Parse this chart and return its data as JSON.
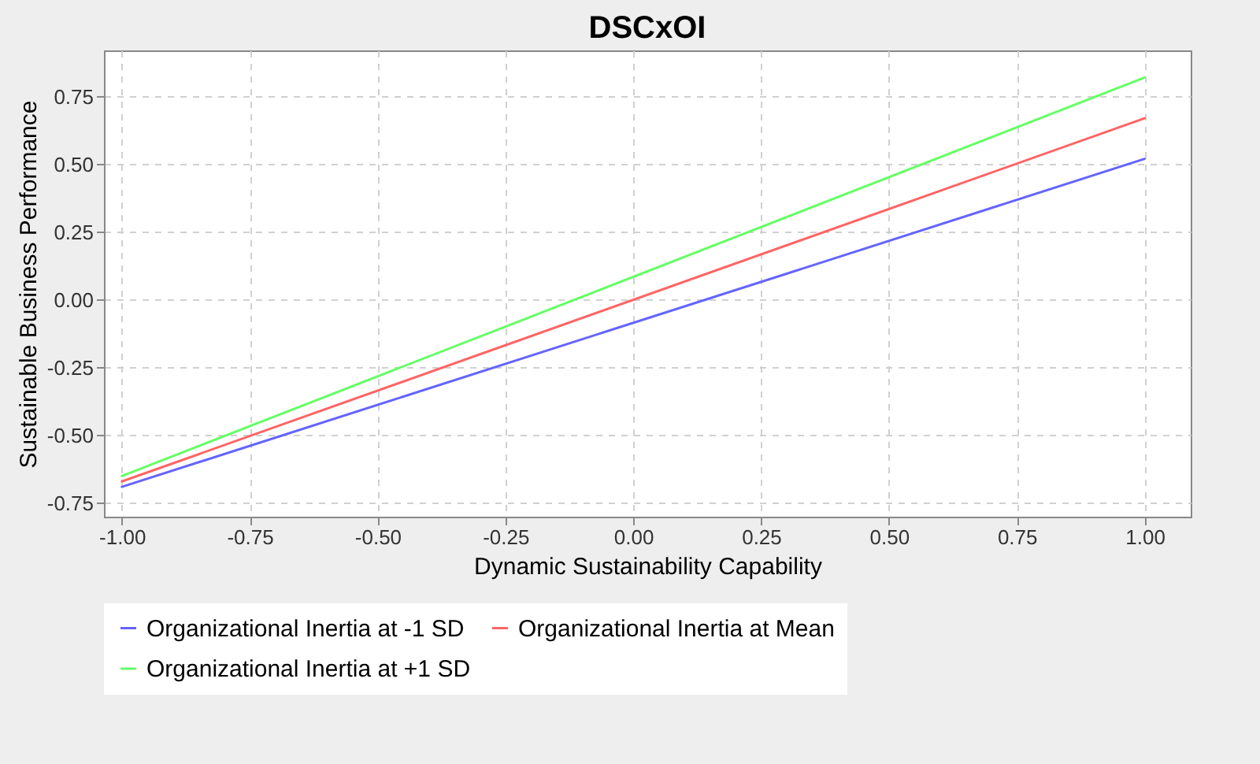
{
  "chart_data": {
    "type": "line",
    "title": "DSCxOI",
    "xlabel": "Dynamic Sustainability Capability",
    "ylabel": "Sustainable Business Performance",
    "x": [
      -1,
      1
    ],
    "series": [
      {
        "name": "Organizational Inertia at -1 SD",
        "color": "#6464ff",
        "values": [
          -0.69,
          0.52
        ]
      },
      {
        "name": "Organizational Inertia at Mean",
        "color": "#ff6464",
        "values": [
          -0.67,
          0.67
        ]
      },
      {
        "name": "Organizational Inertia at +1 SD",
        "color": "#64ff64",
        "values": [
          -0.65,
          0.82
        ]
      }
    ],
    "xlim": [
      -1.035,
      1.09
    ],
    "xticks": [
      {
        "value": -1,
        "label": "-1.00"
      },
      {
        "value": -0.75,
        "label": "-0.75"
      },
      {
        "value": -0.5,
        "label": "-0.50"
      },
      {
        "value": -0.25,
        "label": "-0.25"
      },
      {
        "value": 0,
        "label": "0.00"
      },
      {
        "value": 0.25,
        "label": "0.25"
      },
      {
        "value": 0.5,
        "label": "0.50"
      },
      {
        "value": 0.75,
        "label": "0.75"
      },
      {
        "value": 1,
        "label": "1.00"
      }
    ],
    "ylim": [
      -0.8,
      0.92
    ],
    "yticks": [
      {
        "value": -0.75,
        "label": "-0.75"
      },
      {
        "value": -0.5,
        "label": "-0.50"
      },
      {
        "value": -0.25,
        "label": "-0.25"
      },
      {
        "value": 0,
        "label": "0.00"
      },
      {
        "value": 0.25,
        "label": "0.25"
      },
      {
        "value": 0.5,
        "label": "0.50"
      },
      {
        "value": 0.75,
        "label": "0.75"
      }
    ],
    "grid": true,
    "legend": "bottom",
    "marker": "none",
    "line_style": "solid"
  }
}
